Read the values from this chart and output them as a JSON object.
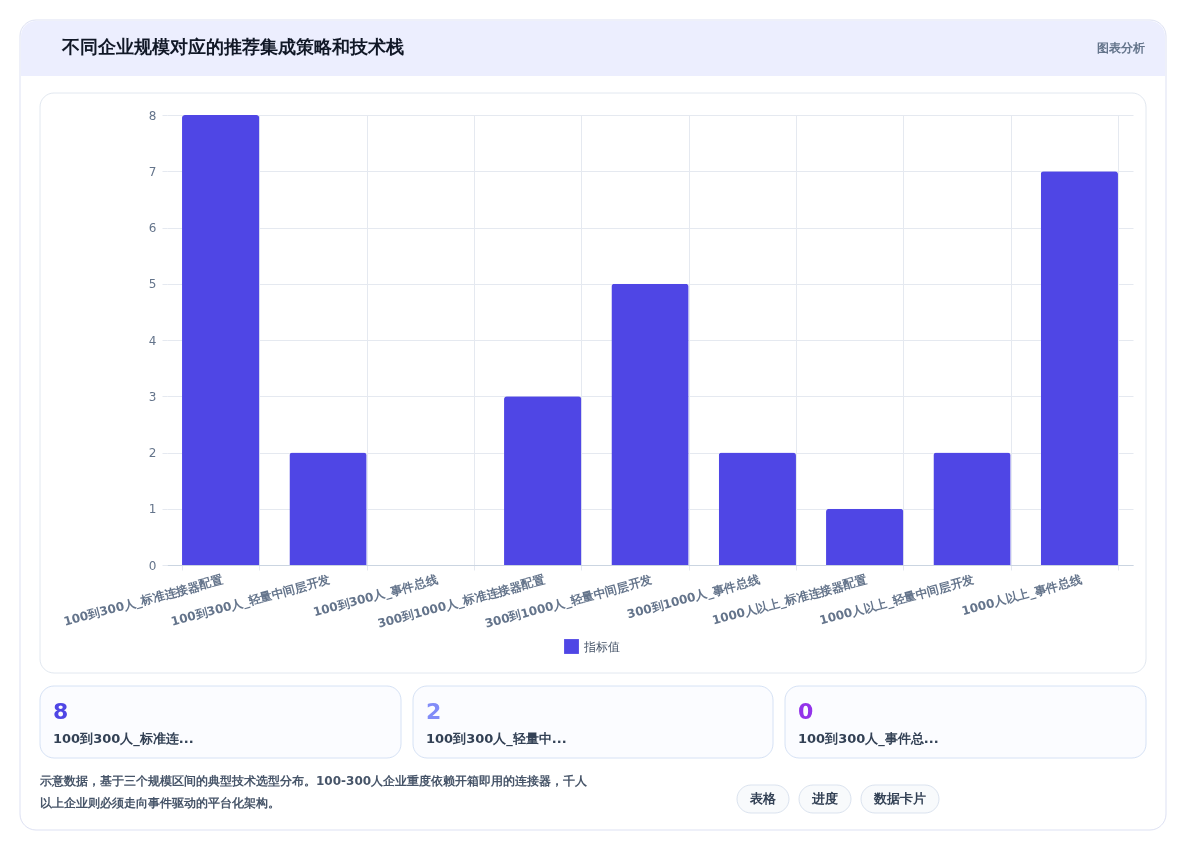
{
  "chart_data": {
    "type": "bar",
    "title": "不同企业规模对应的推荐集成策略和技术栈",
    "categories": [
      "100到300人_标准连接器配置",
      "100到300人_轻量中间层开发",
      "100到300人_事件总线",
      "300到1000人_标准连接器配置",
      "300到1000人_轻量中间层开发",
      "300到1000人_事件总线",
      "1000人以上_标准连接器配置",
      "1000人以上_轻量中间层开发",
      "1000人以上_事件总线"
    ],
    "series": [
      {
        "name": "指标值",
        "color": "#4f46e5",
        "values": [
          8,
          2,
          0,
          3,
          5,
          2,
          1,
          2,
          7
        ]
      }
    ],
    "ylim": [
      0,
      8
    ],
    "yticks": [
      0,
      1,
      2,
      3,
      4,
      5,
      6,
      7,
      8
    ],
    "grid": true,
    "legend": "bottom",
    "annotations": [
      "图表分析",
      "8",
      "100到300人_标准连...",
      "2",
      "100到300人_轻量中...",
      "0",
      "100到300人_事件总...",
      "示意数据，基于三个规模区间的典型技术选型分布。100-300人企业重度依赖开箱即用的连接器，千人以上企业则必须走向事件驱动的平台化架构。",
      "表格",
      "进度",
      "数据卡片"
    ]
  }
}
